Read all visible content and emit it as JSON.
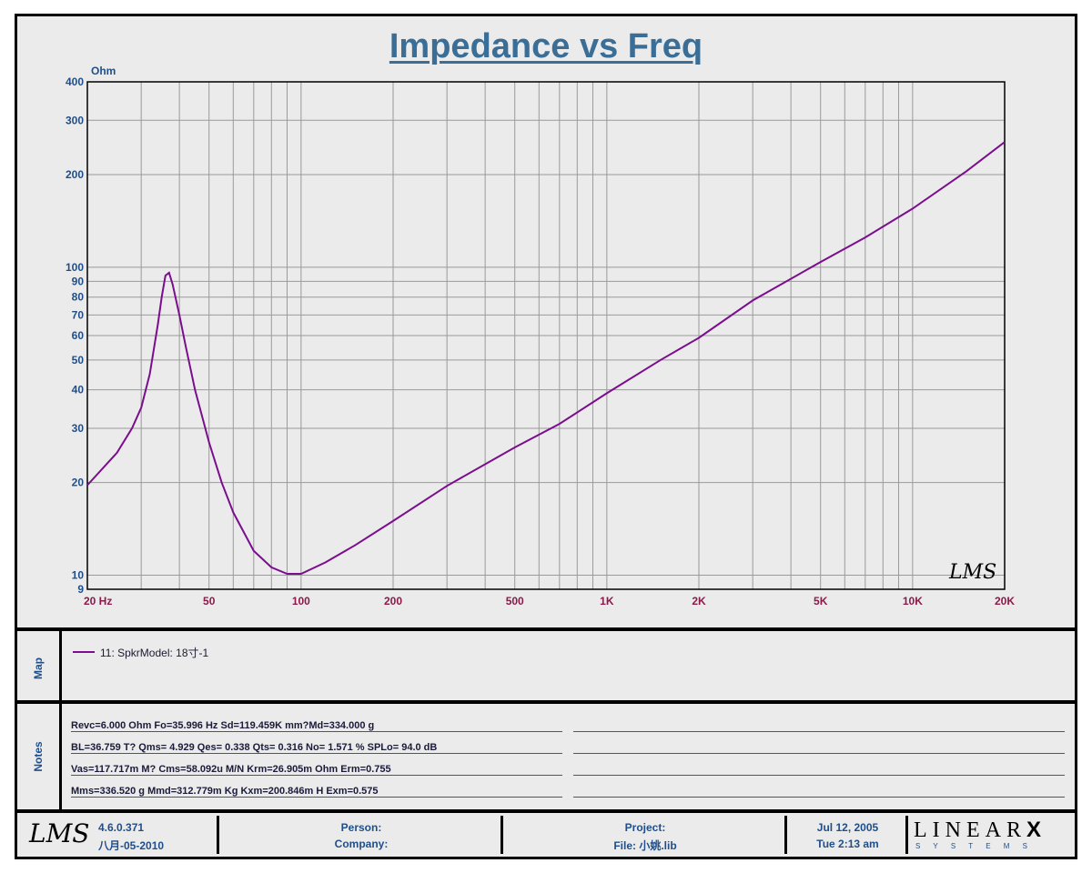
{
  "chart_data": {
    "type": "line",
    "title": "Impedance vs Freq",
    "ylabel": "Ohm",
    "xlabel": "",
    "xscale": "log",
    "yscale": "log",
    "xlim": [
      20,
      20000
    ],
    "ylim": [
      9,
      400
    ],
    "grid": true,
    "x_tick_labels": [
      {
        "v": 20,
        "t": "20  Hz"
      },
      {
        "v": 50,
        "t": "50"
      },
      {
        "v": 100,
        "t": "100"
      },
      {
        "v": 200,
        "t": "200"
      },
      {
        "v": 500,
        "t": "500"
      },
      {
        "v": 1000,
        "t": "1K"
      },
      {
        "v": 2000,
        "t": "2K"
      },
      {
        "v": 5000,
        "t": "5K"
      },
      {
        "v": 10000,
        "t": "10K"
      },
      {
        "v": 20000,
        "t": "20K"
      }
    ],
    "y_tick_labels": [
      {
        "v": 400,
        "t": "400"
      },
      {
        "v": 300,
        "t": "300"
      },
      {
        "v": 200,
        "t": "200"
      },
      {
        "v": 100,
        "t": "100"
      },
      {
        "v": 90,
        "t": "90"
      },
      {
        "v": 80,
        "t": "80"
      },
      {
        "v": 70,
        "t": "70"
      },
      {
        "v": 60,
        "t": "60"
      },
      {
        "v": 50,
        "t": "50"
      },
      {
        "v": 40,
        "t": "40"
      },
      {
        "v": 30,
        "t": "30"
      },
      {
        "v": 20,
        "t": "20"
      },
      {
        "v": 10,
        "t": "10"
      },
      {
        "v": 9,
        "t": "9"
      }
    ],
    "series": [
      {
        "name": "11: SpkrModel: 18寸-1",
        "color": "#7b0d8e",
        "points": [
          [
            20,
            19.6
          ],
          [
            25,
            25
          ],
          [
            28,
            30
          ],
          [
            30,
            35
          ],
          [
            32,
            45
          ],
          [
            34,
            65
          ],
          [
            35,
            80
          ],
          [
            36,
            94
          ],
          [
            37,
            96
          ],
          [
            38,
            88
          ],
          [
            40,
            70
          ],
          [
            42,
            55
          ],
          [
            45,
            40
          ],
          [
            50,
            27
          ],
          [
            55,
            20
          ],
          [
            60,
            16
          ],
          [
            70,
            12
          ],
          [
            80,
            10.6
          ],
          [
            90,
            10.1
          ],
          [
            100,
            10.1
          ],
          [
            120,
            11
          ],
          [
            150,
            12.5
          ],
          [
            200,
            15
          ],
          [
            300,
            19.5
          ],
          [
            500,
            26
          ],
          [
            700,
            31
          ],
          [
            1000,
            39
          ],
          [
            1500,
            50
          ],
          [
            2000,
            59
          ],
          [
            3000,
            78
          ],
          [
            5000,
            104
          ],
          [
            7000,
            125
          ],
          [
            10000,
            155
          ],
          [
            15000,
            205
          ],
          [
            20000,
            255
          ]
        ]
      }
    ]
  },
  "watermark": "LMS",
  "map": {
    "label": "Map",
    "legend_text": "11: SpkrModel: 18寸-1"
  },
  "notes": {
    "label": "Notes",
    "lines": [
      "Revc=6.000 Ohm  Fo=35.996 Hz  Sd=119.459K mm?Md=334.000 g",
      "BL=36.759 T?  Qms= 4.929  Qes= 0.338  Qts= 0.316  No= 1.571 %  SPLo= 94.0 dB",
      "Vas=117.717m M? Cms=58.092u M/N  Krm=26.905m Ohm  Erm=0.755",
      "Mms=336.520 g  Mmd=312.779m Kg  Kxm=200.846m H  Exm=0.575"
    ]
  },
  "footer": {
    "logo": "LMS",
    "version": "4.6.0.371",
    "build_date": "八月-05-2010",
    "person": "Person:",
    "company": "Company:",
    "project": "Project:",
    "file": "File: 小姚.lib",
    "date": "Jul 12, 2005",
    "time": "Tue  2:13 am",
    "brand_top": "LINEAR",
    "brand_x": "X",
    "brand_bottom": "S  Y  S  T  E  M  S"
  },
  "colors": {
    "title": "#3b6e96",
    "curve": "#7b0d8e",
    "x_ticks": "#8b1a4a",
    "y_ticks": "#1f4e8a",
    "grid": "#a0a0a0",
    "background": "#ebebeb"
  }
}
